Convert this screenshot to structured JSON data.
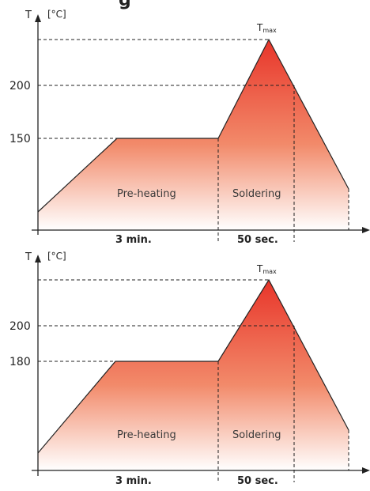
{
  "header": {
    "title_fragment": "g"
  },
  "diagrams": [
    {
      "axis_label": "T",
      "unit_label": "[°C]",
      "plateau_temp": "150",
      "solder_temp": "200",
      "peak_label": "T",
      "peak_label_sub": "max",
      "phase_preheat": "Pre-heating",
      "phase_solder": "Soldering",
      "preheat_duration": "3 min.",
      "solder_duration": "50 sec."
    },
    {
      "axis_label": "T",
      "unit_label": "[°C]",
      "plateau_temp": "180",
      "solder_temp": "200",
      "peak_label": "T",
      "peak_label_sub": "max",
      "phase_preheat": "Pre-heating",
      "phase_solder": "Soldering",
      "preheat_duration": "3 min.",
      "solder_duration": "50 sec."
    }
  ],
  "colors": {
    "profile_hot": "#e8352a",
    "profile_mid": "#f28a6a",
    "profile_cool": "#ffffff",
    "line": "#222222"
  }
}
